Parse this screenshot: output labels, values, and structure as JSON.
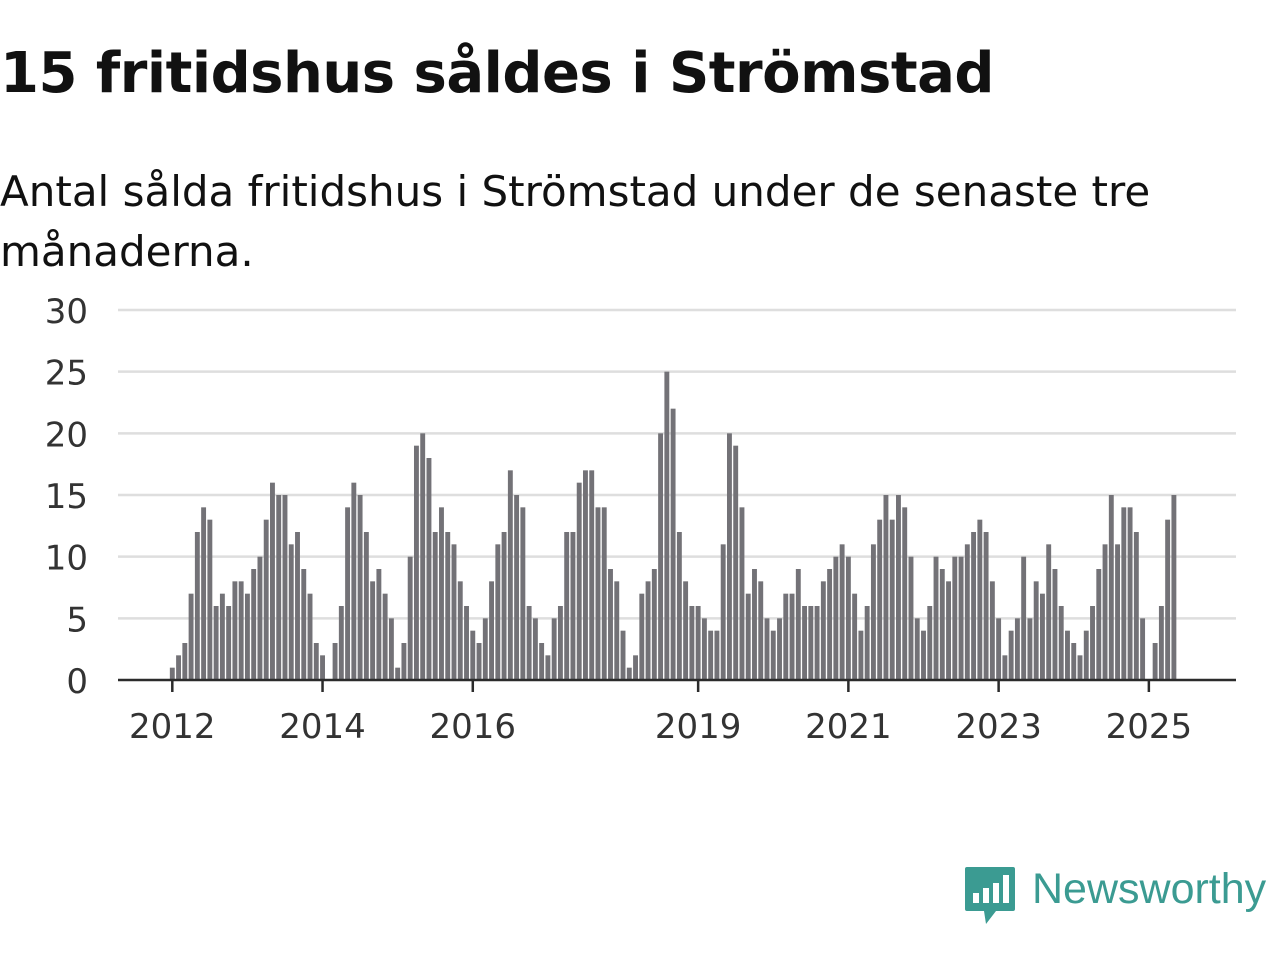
{
  "title": "15 fritidshus såldes i Strömstad",
  "subtitle": "Antal sålda fritidshus i Strömstad under de senaste tre månaderna.",
  "brand": {
    "name": "Newsworthy",
    "icon": "newsworthy-chart-bubble-icon",
    "color": "#3b9b92"
  },
  "colors": {
    "bar": "#737277",
    "highlight": "#139a8e",
    "grid": "#dedede",
    "axis": "#2b2b2b"
  },
  "chart_data": {
    "type": "bar",
    "x_start": "2012-01",
    "x_interval": "month",
    "x_ticks": [
      "2012",
      "2014",
      "2016",
      "2019",
      "2021",
      "2023",
      "2025"
    ],
    "ylim": [
      0,
      30
    ],
    "y_ticks": [
      0,
      5,
      10,
      15,
      20,
      25,
      30
    ],
    "grid": true,
    "highlight": {
      "index": 161,
      "label": "15"
    },
    "values": [
      1,
      2,
      3,
      7,
      12,
      14,
      13,
      6,
      7,
      6,
      8,
      8,
      7,
      9,
      10,
      13,
      16,
      15,
      15,
      11,
      12,
      9,
      7,
      3,
      2,
      0,
      3,
      6,
      14,
      16,
      15,
      12,
      8,
      9,
      7,
      5,
      1,
      3,
      10,
      19,
      20,
      18,
      12,
      14,
      12,
      11,
      8,
      6,
      4,
      3,
      5,
      8,
      11,
      12,
      17,
      15,
      14,
      6,
      5,
      3,
      2,
      5,
      6,
      12,
      12,
      16,
      17,
      17,
      14,
      14,
      9,
      8,
      4,
      1,
      2,
      7,
      8,
      9,
      20,
      25,
      22,
      12,
      8,
      6,
      6,
      5,
      4,
      4,
      11,
      20,
      19,
      14,
      7,
      9,
      8,
      5,
      4,
      5,
      7,
      7,
      9,
      6,
      6,
      6,
      8,
      9,
      10,
      11,
      10,
      7,
      4,
      6,
      11,
      13,
      15,
      13,
      15,
      14,
      10,
      5,
      4,
      6,
      10,
      9,
      8,
      10,
      10,
      11,
      12,
      13,
      12,
      8,
      5,
      2,
      4,
      5,
      10,
      5,
      8,
      7,
      11,
      9,
      6,
      4,
      3,
      2,
      4,
      6,
      9,
      11,
      15,
      11,
      14,
      14,
      12,
      5,
      0,
      3,
      6,
      13,
      15
    ]
  }
}
